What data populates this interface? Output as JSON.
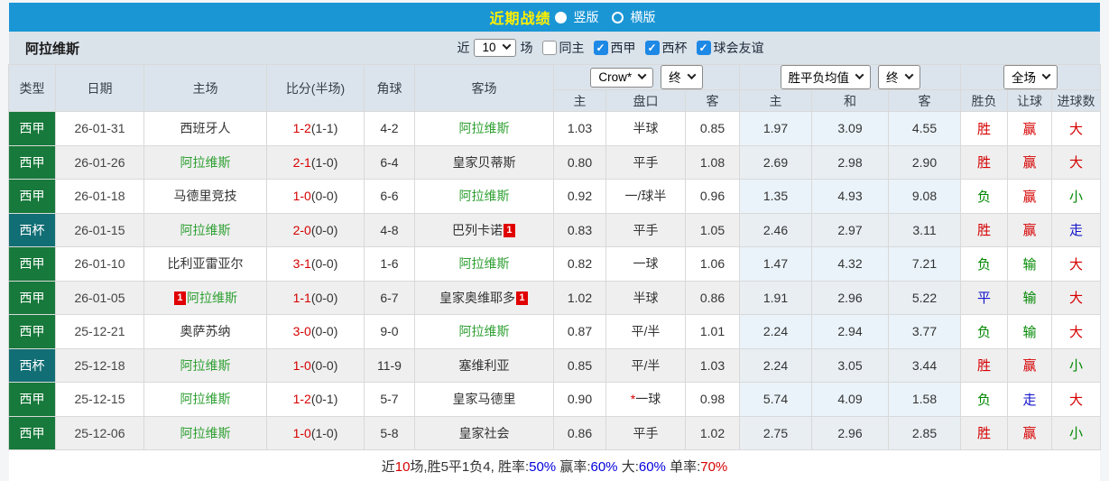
{
  "topbar": {
    "title": "近期战绩",
    "options": [
      {
        "label": "竖版",
        "selected": true
      },
      {
        "label": "横版",
        "selected": false
      }
    ]
  },
  "toolbar": {
    "team": "阿拉维斯",
    "near": "近",
    "count": "10",
    "unit": "场",
    "filters": [
      {
        "label": "同主",
        "checked": false
      },
      {
        "label": "西甲",
        "checked": true
      },
      {
        "label": "西杯",
        "checked": true
      },
      {
        "label": "球会友谊",
        "checked": true
      }
    ]
  },
  "table": {
    "head": {
      "type": "类型",
      "date": "日期",
      "home": "主场",
      "score": "比分(半场)",
      "corner": "角球",
      "away": "客场",
      "odds_company": "Crow*",
      "odds_final": "终",
      "odds_sub": [
        "主",
        "盘口",
        "客"
      ],
      "avg_select": "胜平负均值",
      "avg_final": "终",
      "avg_sub": [
        "主",
        "和",
        "客"
      ],
      "full_select": "全场",
      "result_sub": [
        "胜负",
        "让球",
        "进球数"
      ]
    },
    "rows": [
      {
        "type": "西甲",
        "type_style": "league",
        "date": "26-01-31",
        "home": {
          "name": "西班牙人",
          "green": false,
          "badge": false
        },
        "score_ft": "1-2",
        "score_ht": "(1-1)",
        "corner": "4-2",
        "away": {
          "name": "阿拉维斯",
          "green": true,
          "badge": false
        },
        "odds": {
          "home": "1.03",
          "handicap": "半球",
          "star": false,
          "away": "0.85"
        },
        "avg": [
          "1.97",
          "3.09",
          "4.55"
        ],
        "results": [
          {
            "t": "胜",
            "c": "r"
          },
          {
            "t": "赢",
            "c": "r"
          },
          {
            "t": "大",
            "c": "r"
          }
        ]
      },
      {
        "type": "西甲",
        "type_style": "league",
        "date": "26-01-26",
        "home": {
          "name": "阿拉维斯",
          "green": true,
          "badge": false
        },
        "score_ft": "2-1",
        "score_ht": "(1-0)",
        "corner": "6-4",
        "away": {
          "name": "皇家贝蒂斯",
          "green": false,
          "badge": false
        },
        "odds": {
          "home": "0.80",
          "handicap": "平手",
          "star": false,
          "away": "1.08"
        },
        "avg": [
          "2.69",
          "2.98",
          "2.90"
        ],
        "results": [
          {
            "t": "胜",
            "c": "r"
          },
          {
            "t": "赢",
            "c": "r"
          },
          {
            "t": "大",
            "c": "r"
          }
        ]
      },
      {
        "type": "西甲",
        "type_style": "league",
        "date": "26-01-18",
        "home": {
          "name": "马德里竞技",
          "green": false,
          "badge": false
        },
        "score_ft": "1-0",
        "score_ht": "(0-0)",
        "corner": "6-6",
        "away": {
          "name": "阿拉维斯",
          "green": true,
          "badge": false
        },
        "odds": {
          "home": "0.92",
          "handicap": "一/球半",
          "star": false,
          "away": "0.96"
        },
        "avg": [
          "1.35",
          "4.93",
          "9.08"
        ],
        "results": [
          {
            "t": "负",
            "c": "g"
          },
          {
            "t": "赢",
            "c": "r"
          },
          {
            "t": "小",
            "c": "g"
          }
        ]
      },
      {
        "type": "西杯",
        "type_style": "cup",
        "date": "26-01-15",
        "home": {
          "name": "阿拉维斯",
          "green": true,
          "badge": false
        },
        "score_ft": "2-0",
        "score_ht": "(0-0)",
        "corner": "4-8",
        "away": {
          "name": "巴列卡诺",
          "green": false,
          "badge": true
        },
        "odds": {
          "home": "0.83",
          "handicap": "平手",
          "star": false,
          "away": "1.05"
        },
        "avg": [
          "2.46",
          "2.97",
          "3.11"
        ],
        "results": [
          {
            "t": "胜",
            "c": "r"
          },
          {
            "t": "赢",
            "c": "r"
          },
          {
            "t": "走",
            "c": "b"
          }
        ]
      },
      {
        "type": "西甲",
        "type_style": "league",
        "date": "26-01-10",
        "home": {
          "name": "比利亚雷亚尔",
          "green": false,
          "badge": false
        },
        "score_ft": "3-1",
        "score_ht": "(0-0)",
        "corner": "1-6",
        "away": {
          "name": "阿拉维斯",
          "green": true,
          "badge": false
        },
        "odds": {
          "home": "0.82",
          "handicap": "一球",
          "star": false,
          "away": "1.06"
        },
        "avg": [
          "1.47",
          "4.32",
          "7.21"
        ],
        "results": [
          {
            "t": "负",
            "c": "g"
          },
          {
            "t": "输",
            "c": "g"
          },
          {
            "t": "大",
            "c": "r"
          }
        ]
      },
      {
        "type": "西甲",
        "type_style": "league",
        "date": "26-01-05",
        "home": {
          "name": "阿拉维斯",
          "green": true,
          "badge": true
        },
        "score_ft": "1-1",
        "score_ht": "(0-0)",
        "corner": "6-7",
        "away": {
          "name": "皇家奥维耶多",
          "green": false,
          "badge": true
        },
        "odds": {
          "home": "1.02",
          "handicap": "半球",
          "star": false,
          "away": "0.86"
        },
        "avg": [
          "1.91",
          "2.96",
          "5.22"
        ],
        "results": [
          {
            "t": "平",
            "c": "b"
          },
          {
            "t": "输",
            "c": "g"
          },
          {
            "t": "大",
            "c": "r"
          }
        ]
      },
      {
        "type": "西甲",
        "type_style": "league",
        "date": "25-12-21",
        "home": {
          "name": "奥萨苏纳",
          "green": false,
          "badge": false
        },
        "score_ft": "3-0",
        "score_ht": "(0-0)",
        "corner": "9-0",
        "away": {
          "name": "阿拉维斯",
          "green": true,
          "badge": false
        },
        "odds": {
          "home": "0.87",
          "handicap": "平/半",
          "star": false,
          "away": "1.01"
        },
        "avg": [
          "2.24",
          "2.94",
          "3.77"
        ],
        "results": [
          {
            "t": "负",
            "c": "g"
          },
          {
            "t": "输",
            "c": "g"
          },
          {
            "t": "大",
            "c": "r"
          }
        ]
      },
      {
        "type": "西杯",
        "type_style": "cup",
        "date": "25-12-18",
        "home": {
          "name": "阿拉维斯",
          "green": true,
          "badge": false
        },
        "score_ft": "1-0",
        "score_ht": "(0-0)",
        "corner": "11-9",
        "away": {
          "name": "塞维利亚",
          "green": false,
          "badge": false
        },
        "odds": {
          "home": "0.85",
          "handicap": "平/半",
          "star": false,
          "away": "1.03"
        },
        "avg": [
          "2.24",
          "3.05",
          "3.44"
        ],
        "results": [
          {
            "t": "胜",
            "c": "r"
          },
          {
            "t": "赢",
            "c": "r"
          },
          {
            "t": "小",
            "c": "g"
          }
        ]
      },
      {
        "type": "西甲",
        "type_style": "league",
        "date": "25-12-15",
        "home": {
          "name": "阿拉维斯",
          "green": true,
          "badge": false
        },
        "score_ft": "1-2",
        "score_ht": "(0-1)",
        "corner": "5-7",
        "away": {
          "name": "皇家马德里",
          "green": false,
          "badge": false
        },
        "odds": {
          "home": "0.90",
          "handicap": "一球",
          "star": true,
          "away": "0.98"
        },
        "avg": [
          "5.74",
          "4.09",
          "1.58"
        ],
        "results": [
          {
            "t": "负",
            "c": "g"
          },
          {
            "t": "走",
            "c": "b"
          },
          {
            "t": "大",
            "c": "r"
          }
        ]
      },
      {
        "type": "西甲",
        "type_style": "league",
        "date": "25-12-06",
        "home": {
          "name": "阿拉维斯",
          "green": true,
          "badge": false
        },
        "score_ft": "1-0",
        "score_ht": "(1-0)",
        "corner": "5-8",
        "away": {
          "name": "皇家社会",
          "green": false,
          "badge": false
        },
        "odds": {
          "home": "0.86",
          "handicap": "平手",
          "star": false,
          "away": "1.02"
        },
        "avg": [
          "2.75",
          "2.96",
          "2.85"
        ],
        "results": [
          {
            "t": "胜",
            "c": "r"
          },
          {
            "t": "赢",
            "c": "r"
          },
          {
            "t": "小",
            "c": "g"
          }
        ]
      }
    ]
  },
  "footer": {
    "segments": [
      {
        "text": "近",
        "color": "#333333"
      },
      {
        "text": "10",
        "color": "#D60000"
      },
      {
        "text": "场,胜5平1负4, 胜率:",
        "color": "#333333"
      },
      {
        "text": "50%",
        "color": "#0000DD"
      },
      {
        "text": " 赢率:",
        "color": "#333333"
      },
      {
        "text": "60%",
        "color": "#0000DD"
      },
      {
        "text": " 大:",
        "color": "#333333"
      },
      {
        "text": "60%",
        "color": "#0000DD"
      },
      {
        "text": " 单率:",
        "color": "#333333"
      },
      {
        "text": "70%",
        "color": "#D60000"
      }
    ]
  },
  "colors": {
    "topbar_blue": "#1B96D5",
    "title_yellow": "#FFF000",
    "league_green": "#17793B",
    "cup_teal": "#116E74",
    "team_green": "#2FA033",
    "win_red": "#D60000",
    "lose_green": "#008800",
    "draw_blue": "#1414CC",
    "checkbox_blue": "#1E88E5"
  }
}
